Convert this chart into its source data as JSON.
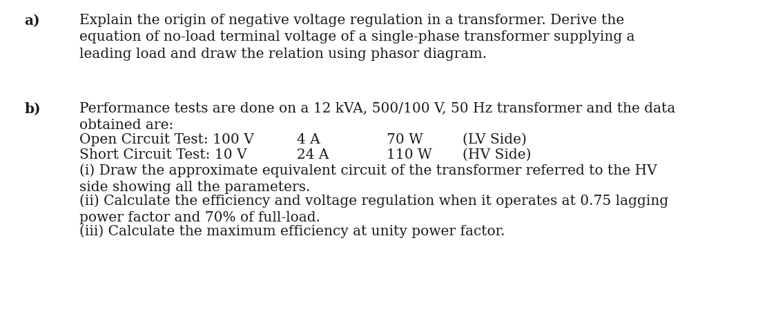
{
  "background_color": "#ffffff",
  "label_a": "a)",
  "label_b": "b)",
  "text_a": "Explain the origin of negative voltage regulation in a transformer. Derive the\nequation of no-load terminal voltage of a single-phase transformer supplying a\nleading load and draw the relation using phasor diagram.",
  "text_b_intro": "Performance tests are done on a 12 kVA, 500/100 V, 50 Hz transformer and the data\nobtained are:",
  "text_oct": "Open Circuit Test: 100 V",
  "text_oct_vals": "4 A         70 W   (LV Side)",
  "text_sct": "Short Circuit Test: 10 V",
  "text_sct_vals": "24 A    110 W   (HV Side)",
  "text_i": "(i) Draw the approximate equivalent circuit of the transformer referred to the HV\nside showing all the parameters.",
  "text_ii": "(ii) Calculate the efficiency and voltage regulation when it operates at 0.75 lagging\npower factor and 70% of full-load.",
  "text_iii": "(iii) Calculate the maximum efficiency at unity power factor.",
  "font_size": 14.5,
  "label_font_size": 14.5,
  "font_family": "DejaVu Serif",
  "text_color": "#1a1a1a",
  "fig_width": 10.98,
  "fig_height": 4.84,
  "dpi": 100
}
